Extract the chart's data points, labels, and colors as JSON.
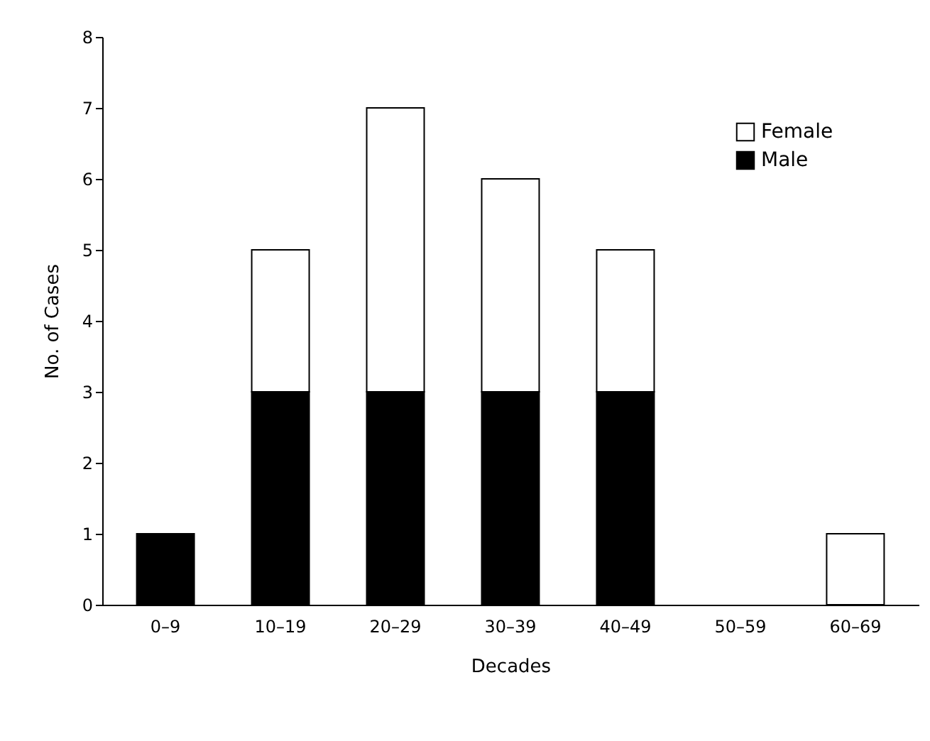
{
  "chart_data": {
    "type": "bar",
    "xlabel": "Decades",
    "ylabel": "No. of Cases",
    "categories": [
      "0–9",
      "10–19",
      "20–29",
      "30–39",
      "40–49",
      "50–59",
      "60–69"
    ],
    "series": [
      {
        "name": "Male",
        "color": "#000000",
        "values": [
          1,
          3,
          3,
          3,
          3,
          0,
          0
        ]
      },
      {
        "name": "Female",
        "color": "#ffffff",
        "values": [
          0,
          2,
          4,
          3,
          2,
          0,
          1
        ]
      }
    ],
    "stacked": true,
    "ylim": [
      0,
      8
    ],
    "yticks": [
      0,
      1,
      2,
      3,
      4,
      5,
      6,
      7,
      8
    ],
    "grid": false,
    "legend": "top right"
  }
}
